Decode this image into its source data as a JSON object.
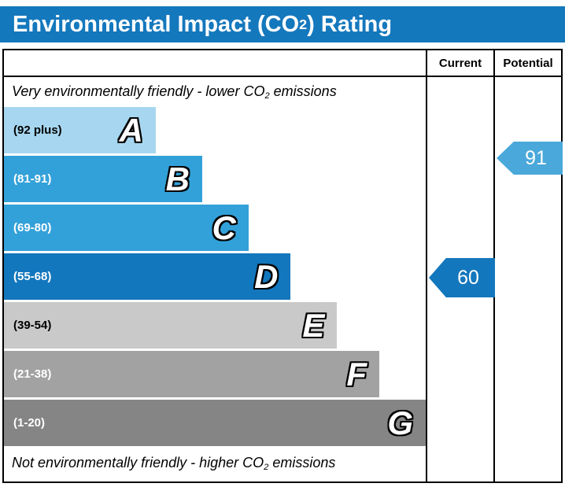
{
  "title": {
    "pre": "Environmental Impact (CO",
    "sub": "2",
    "post": ") Rating"
  },
  "header": {
    "current": "Current",
    "potential": "Potential"
  },
  "caption_top": {
    "pre": "Very environmentally friendly - lower CO",
    "sub": "2",
    "post": " emissions"
  },
  "caption_bottom": {
    "pre": "Not environmentally friendly - higher CO",
    "sub": "2",
    "post": " emissions"
  },
  "bands": [
    {
      "letter": "A",
      "range": "(92 plus)",
      "color": "#a7d7f0",
      "text_color": "#000000",
      "width_pct": 36
    },
    {
      "letter": "B",
      "range": "(81-91)",
      "color": "#33a1d9",
      "text_color": "#ffffff",
      "width_pct": 47
    },
    {
      "letter": "C",
      "range": "(69-80)",
      "color": "#33a1d9",
      "text_color": "#ffffff",
      "width_pct": 58
    },
    {
      "letter": "D",
      "range": "(55-68)",
      "color": "#1377bd",
      "text_color": "#ffffff",
      "width_pct": 68
    },
    {
      "letter": "E",
      "range": "(39-54)",
      "color": "#c9c9c9",
      "text_color": "#000000",
      "width_pct": 79
    },
    {
      "letter": "F",
      "range": "(21-38)",
      "color": "#a2a2a2",
      "text_color": "#ffffff",
      "width_pct": 89
    },
    {
      "letter": "G",
      "range": "(1-20)",
      "color": "#858585",
      "text_color": "#ffffff",
      "width_pct": 100
    }
  ],
  "current": {
    "value": "60",
    "color": "#1377bd"
  },
  "potential": {
    "value": "91",
    "color": "#4aa8da"
  },
  "colors": {
    "title_bg": "#1478bd"
  },
  "chart_data": {
    "type": "bar",
    "title": "Environmental Impact (CO2) Rating",
    "categories": [
      "A (92 plus)",
      "B (81-91)",
      "C (69-80)",
      "D (55-68)",
      "E (39-54)",
      "F (21-38)",
      "G (1-20)"
    ],
    "values": [
      36,
      47,
      58,
      68,
      79,
      89,
      100
    ],
    "band_colors": [
      "#a7d7f0",
      "#33a1d9",
      "#33a1d9",
      "#1377bd",
      "#c9c9c9",
      "#a2a2a2",
      "#858585"
    ],
    "annotations": [
      {
        "label": "Current",
        "value": 60,
        "band": "D",
        "color": "#1377bd"
      },
      {
        "label": "Potential",
        "value": 91,
        "band": "B",
        "color": "#4aa8da"
      }
    ],
    "top_caption": "Very environmentally friendly - lower CO2 emissions",
    "bottom_caption": "Not environmentally friendly - higher CO2 emissions",
    "legend_position": "none",
    "grid": false
  }
}
